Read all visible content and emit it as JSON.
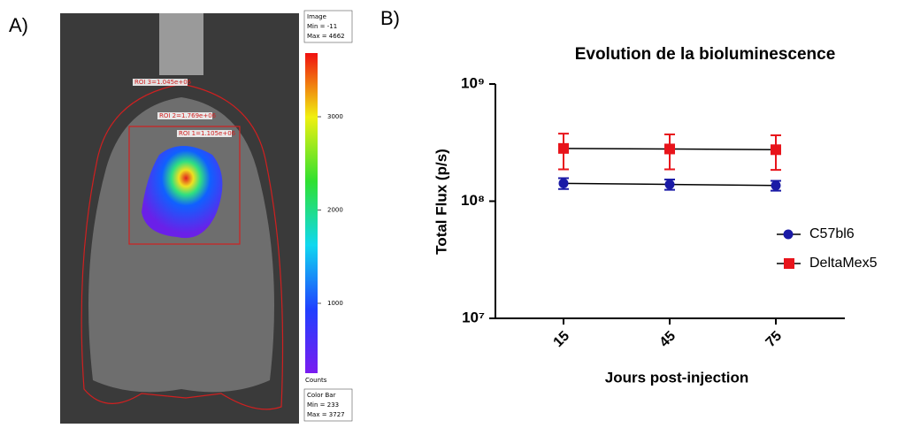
{
  "panels": {
    "a": "A)",
    "b": "B)"
  },
  "image": {
    "info": [
      "Image",
      "Min = -11",
      "Max = 4662"
    ],
    "rois": [
      "ROI 3=1.045e+06",
      "ROI 2=1.769e+06",
      "ROI 1=1.105e+06"
    ],
    "colorbar": {
      "ticks": [
        1000,
        2000,
        3000
      ],
      "unit": "Counts",
      "box": [
        "Color Bar",
        "Min = 233",
        "Max = 3727"
      ]
    }
  },
  "chart_data": {
    "type": "line",
    "title": "Evolution de la bioluminescence",
    "xlabel": "Jours post-injection",
    "ylabel": "Total Flux (p/s)",
    "categories": [
      "15",
      "45",
      "75"
    ],
    "ylim": [
      10000000,
      1000000000
    ],
    "log_scale": true,
    "yticks": [
      {
        "value": 10000000,
        "label": "10⁷"
      },
      {
        "value": 100000000,
        "label": "10⁸"
      },
      {
        "value": 1000000000,
        "label": "10⁹"
      }
    ],
    "legend": "right",
    "series": [
      {
        "name": "C57bl6",
        "color": "#1a1aa6",
        "marker": "circle",
        "values": [
          142000000,
          139000000,
          136000000
        ],
        "errors": [
          15000000,
          14000000,
          13000000
        ]
      },
      {
        "name": "DeltaMex5",
        "color": "#e8141b",
        "marker": "square",
        "values": [
          282000000,
          279000000,
          275000000
        ],
        "errors": [
          95000000,
          92000000,
          90000000
        ]
      }
    ]
  }
}
